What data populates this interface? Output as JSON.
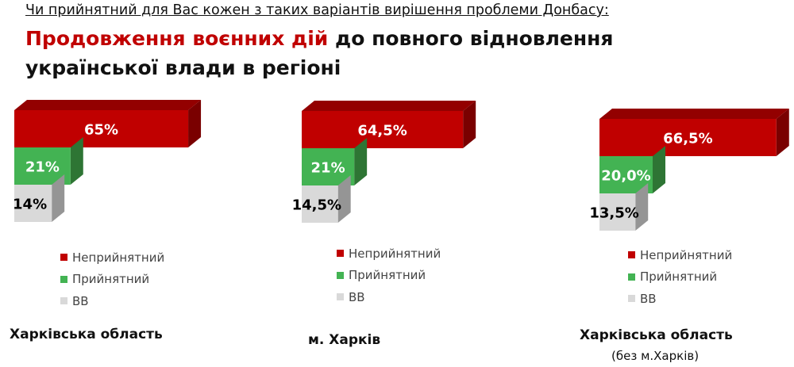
{
  "header": {
    "question": "Чи прийнятний для Вас кожен з таких варіантів вирішення проблеми Донбасу:",
    "title_highlight": "Продовження воєнних дій",
    "title_rest": " до повного відновлення",
    "title_line2": "української влади в регіоні"
  },
  "chart_data": [
    {
      "type": "bar",
      "orientation": "horizontal",
      "style": "3d",
      "title": "Харківська область",
      "subtitle": "",
      "categories": [
        "Неприйнятний",
        "Прийнятний",
        "ВВ"
      ],
      "values": [
        65,
        21,
        14
      ],
      "labels": [
        "65%",
        "21%",
        "14%"
      ]
    },
    {
      "type": "bar",
      "orientation": "horizontal",
      "style": "3d",
      "title": "м. Харків",
      "subtitle": "",
      "categories": [
        "Неприйнятний",
        "Прийнятний",
        "ВВ"
      ],
      "values": [
        64.5,
        21,
        14.5
      ],
      "labels": [
        "64,5%",
        "21%",
        "14,5%"
      ]
    },
    {
      "type": "bar",
      "orientation": "horizontal",
      "style": "3d",
      "title": "Харківська область",
      "subtitle": "(без м.Харків)",
      "categories": [
        "Неприйнятний",
        "Прийнятний",
        "ВВ"
      ],
      "values": [
        66.5,
        20.0,
        13.5
      ],
      "labels": [
        "66,5%",
        "20,0%",
        "13,5%"
      ]
    }
  ],
  "colors": {
    "Неприйнятний": "#c00000",
    "Прийнятний": "#43b353",
    "ВВ": "#d9d9d9"
  }
}
